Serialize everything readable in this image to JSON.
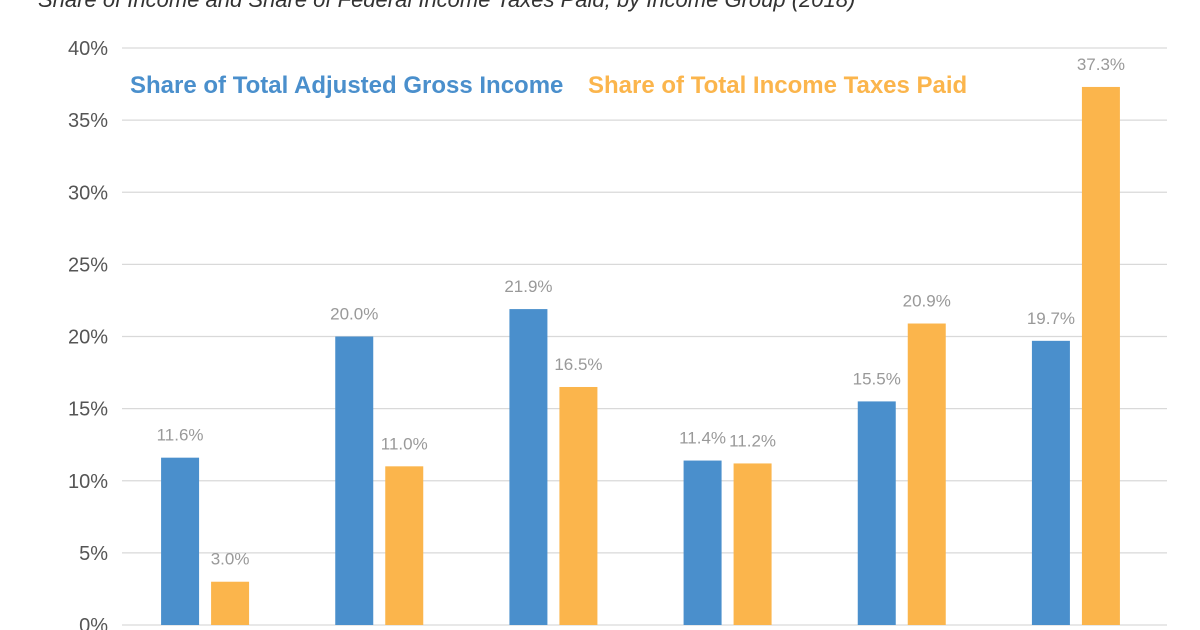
{
  "chart_data": {
    "type": "bar",
    "title": "Share of Income and Share of Federal Income Taxes Paid, by Income Group (2018)",
    "categories": [
      "",
      "",
      "",
      "",
      "",
      ""
    ],
    "series": [
      {
        "name": "Share of Total Adjusted Gross Income",
        "color": "#4a8fcc",
        "values": [
          11.6,
          20.0,
          21.9,
          11.4,
          15.5,
          19.7
        ]
      },
      {
        "name": "Share of Total Income Taxes Paid",
        "color": "#fbb54c",
        "values": [
          3.0,
          11.0,
          16.5,
          11.2,
          20.9,
          37.3
        ]
      }
    ],
    "ylim": [
      0,
      40
    ],
    "yticks": [
      "0%",
      "5%",
      "10%",
      "15%",
      "20%",
      "25%",
      "30%",
      "35%",
      "40%"
    ],
    "grid": true,
    "legend_position": "top",
    "data_label_color": "#999999"
  }
}
